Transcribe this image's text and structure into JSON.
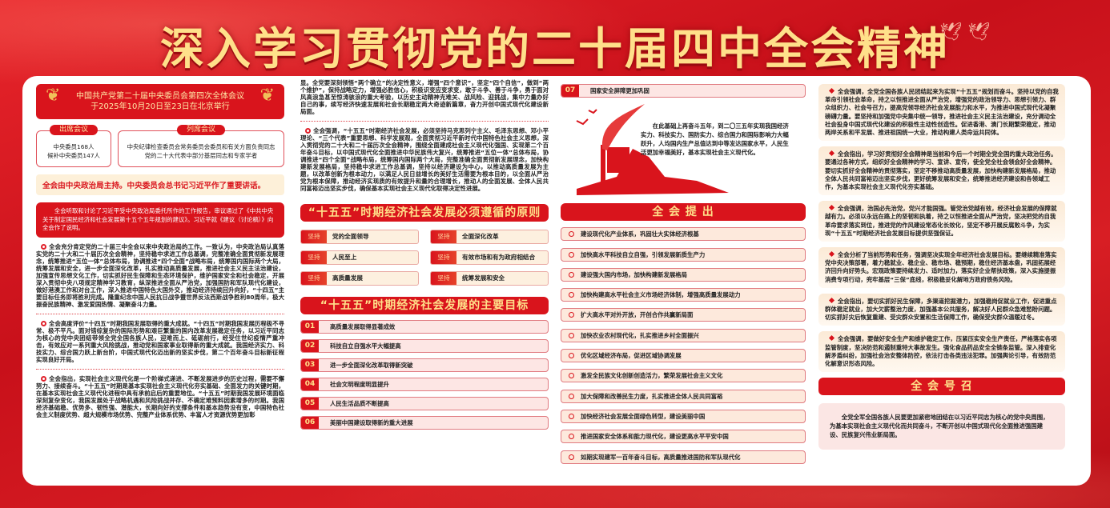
{
  "title": "深入学习贯彻党的二十届四中全会精神",
  "colors": {
    "primary_red": "#d9141c",
    "gold": "#ffe08a",
    "cream": "#fdf0d9"
  },
  "meeting": {
    "line1": "中国共产党第二十届中央委员会第四次全体会议",
    "line2": "于2025年10月20日至23日在北京举行"
  },
  "attend": {
    "label": "出席会议",
    "lines": [
      "中央委员168人",
      "候补中央委员147人"
    ]
  },
  "observe": {
    "label": "列席会议",
    "lines": [
      "中央纪律检查委员会常务委员会委员和有关方面负责同志",
      "党的二十大代表中部分基层同志和专家学者"
    ]
  },
  "host": "全会由中央政治局主持。中央委员会总书记习近平作了重要讲话。",
  "report": "全会听取和讨论了习近平受中央政治局委托所作的工作报告，审议通过了《中共中央关于制定国民经济和社会发展第十五个五年规划的建议》。习近平就《建议（讨论稿）》向全会作了说明。",
  "col1_paragraphs": [
    "全会充分肯定党的二十届三中全会以来中央政治局的工作。一致认为，中央政治局认真落实党的二十大和二十届历次全会精神，坚持稳中求进工作总基调，完整准确全面贯彻新发展理念，统筹推进“五位一体”总体布局，协调推进“四个全面”战略布局，统筹国内国际两个大局，统筹发展和安全，进一步全面深化改革，扎实推动高质量发展，推进社会主义民主法治建设，加强宣传思想文化工作，切实抓好民生保障和生态环境保护，维护国家安全和社会稳定，开展深入贯彻中央八项规定精神学习教育，纵深推进全面从严治党，加强国防和军队现代化建设，做好港澳工作和对台工作，深入推进中国特色大国外交，推动经济持续回升向好，“十四五”主要目标任务即将胜利完成。隆重纪念中国人民抗日战争暨世界反法西斯战争胜利80周年，极大振奋民族精神、激发爱国热情、凝聚奋斗力量。",
    "全会高度评价“十四五”时期我国发展取得的重大成就。“十四五”时期我国发展历程极不寻常、极不平凡。面对错综复杂的国际形势和艰巨繁重的国内改革发展稳定任务，以习近平同志为核心的党中央团结带领全党全国各族人民，迎难而上、砥砺前行，经受住世纪疫情严重冲击，有效应对一系列重大风险挑战，推动党和国家事业取得新的重大成就。我国经济实力、科技实力、综合国力跃上新台阶，中国式现代化迈出新的坚实步伐，第二个百年奋斗目标新征程实现良好开局。",
    "全会指出，实现社会主义现代化是一个阶梯式递进、不断发展进步的历史过程，需要不懈努力、接续奋斗。“十五五”时期是基本实现社会主义现代化夯实基础、全面发力的关键时期，在基本实现社会主义现代化进程中具有承前启后的重要地位。“十五五”时期我国发展环境面临深刻复杂变化，我国发展处于战略机遇和风险挑战并存、不确定难预料因素增多的时期。我国经济基础稳、优势多、韧性强、潜能大，长期向好的支撑条件和基本趋势没有变，中国特色社会主义制度优势、超大规模市场优势、完整产业体系优势、丰富人才资源优势更加彰"
  ],
  "col2_paragraphs": [
    "显。全党要深刻领悟“两个确立”的决定性意义，增强“四个意识”，坚定“四个自信”，做到“两个维护”，保持战略定力，增强必胜信心，积极识变应变求变，敢于斗争、善于斗争，勇于面对风高浪急甚至惊涛骇浪的重大考验，以历史主动精神克难关、战风险、迎挑战，集中力量办好自己的事，续写经济快速发展和社会长期稳定两大奇迹新篇章，奋力开创中国式现代化建设新局面。",
    "全会强调，“十五五”时期经济社会发展，必须坚持马克思列宁主义、毛泽东思想、邓小平理论、“三个代表”重要思想、科学发展观，全面贯彻习近平新时代中国特色社会主义思想，深入贯彻党的二十大和二十届历次全会精神，围绕全面建成社会主义现代化强国、实现第二个百年奋斗目标，以中国式现代化全面推进中华民族伟大复兴，统筹推进“五位一体”总体布局，协调推进“四个全面”战略布局，统筹国内国际两个大局，完整准确全面贯彻新发展理念，加快构建新发展格局，坚持稳中求进工作总基调，坚持以经济建设为中心，以推动高质量发展为主题，以改革创新为根本动力，以满足人民日益增长的美好生活需要为根本目的，以全面从严治党为根本保障，推动经济实现质的有效提升和量的合理增长，推动人的全面发展、全体人民共同富裕迈出坚实步伐，确保基本实现社会主义现代化取得决定性进展。"
  ],
  "principles": {
    "title": "“十五五”时期经济社会发展必须遵循的原则",
    "key": "坚持",
    "items": [
      "党的全面领导",
      "全面深化改革",
      "人民至上",
      "有效市场和有为政府相结合",
      "高质量发展",
      "统筹发展和安全"
    ]
  },
  "goals": {
    "title": "“十五五”时期经济社会发展的主要目标",
    "items": [
      {
        "num": "01",
        "text": "高质量发展取得显著成效"
      },
      {
        "num": "02",
        "text": "科技自立自强水平大幅提高"
      },
      {
        "num": "03",
        "text": "进一步全面深化改革取得新突破"
      },
      {
        "num": "04",
        "text": "社会文明程度明显提升"
      },
      {
        "num": "05",
        "text": "人民生活品质不断提高"
      },
      {
        "num": "06",
        "text": "美丽中国建设取得新的重大进展"
      },
      {
        "num": "07",
        "text": "国家安全屏障更加巩固"
      }
    ]
  },
  "vision": "在此基础上再奋斗五年，到二〇三五年实现我国经济实力、科技实力、国防实力、综合国力和国际影响力大幅跃升，人均国内生产总值达到中等发达国家水平，人民生活更加幸福美好，基本实现社会主义现代化。",
  "proposals": {
    "title": "全 会 提 出",
    "items": [
      "建设现代化产业体系，巩固壮大实体经济根基",
      "加快高水平科技自立自强，引领发展新质生产力",
      "建设强大国内市场，加快构建新发展格局",
      "加快构建高水平社会主义市场经济体制，增强高质量发展动力",
      "扩大高水平对外开放，开创合作共赢新局面",
      "加快农业农村现代化，扎实推进乡村全面振兴",
      "优化区域经济布局，促进区域协调发展",
      "激发全民族文化创新创造活力，繁荣发展社会主义文化",
      "加大保障和改善民生力度，扎实推进全体人民共同富裕",
      "加快经济社会发展全面绿色转型，建设美丽中国",
      "推进国家安全体系和能力现代化，建设更高水平平安中国",
      "如期实现建军一百年奋斗目标，高质量推进国防和军队现代化"
    ]
  },
  "col4_cards": [
    "全会强调，全党全国各族人民团结起来为实现“十五五”规划而奋斗。坚持以党的自我革命引领社会革命，持之以恒推进全面从严治党，增强党的政治领导力、思想引领力、群众组织力、社会号召力，提高党领导经济社会发展能力和水平，为推进中国式现代化凝聚磅礴力量。要坚持和加强党中央集中统一领导，推进社会主义民主法治建设，充分调动全社会投身中国式现代化建设的积极性主动性创造性。促进香港、澳门长期繁荣稳定，推动两岸关系和平发展、推进祖国统一大业，推动构建人类命运共同体。",
    "全会指出，学习好贯彻好全会精神是当前和今后一个时期全党全国的重大政治任务。要通过各种方式，组织好全会精神的学习、宣讲、宣传，使全党全社会领会好全会精神。要切实抓好全会精神的贯彻落实，坚定不移推动高质量发展，加快构建新发展格局，推动全体人民共同富裕迈出坚实步伐，更好统筹发展和安全，统筹推进经济建设和各领域工作，为基本实现社会主义现代化夯实基础。",
    "全会强调，治国必先治党，党兴才能国强。管党治党越有效，经济社会发展的保障就越有力。必须以永远在路上的坚韧和执着，持之以恒推进全面从严治党，坚决把党的自我革命要求落实到位，推进党的作风建设常态化长效化，坚定不移开展反腐败斗争，为实现“十五五”时期经济社会发展目标提供坚强保证。",
    "全会分析了当前形势和任务，强调坚决实现全年经济社会发展目标。要继续精准落实党中央决策部署，着力稳就业、稳企业、稳市场、稳预期，稳住经济基本盘，巩固拓展经济回升向好势头。宏观政策要持续发力、适时加力，落实好企业帮扶政策，深入实施提振消费专项行动，兜牢基层“三保”底线，积极稳妥化解地方政府债务风险。",
    "全会指出，要切实抓好民生保障，多渠道挖掘潜力，加强稳岗促就业工作，促进重点群体稳定就业，加大欠薪整治力度，加强基本公共服务，解决好人民群众急难愁盼问题。切实抓好灾后恢复重建、受灾群众安置和生活保障工作，确保受灾群众温暖过冬。",
    "全会强调，要做好安全生产和维护稳定工作，压紧压实安全生产责任，严格落实各项监管制度，坚决防范和遏制重特大事故发生。强化食品药品安全全链条监管。深入排查化解矛盾纠纷，加强社会治安整体防控，依法打击各类违法犯罪。加强舆论引导，有效防范化解意识形态风险。"
  ],
  "call": {
    "title": "全 会 号 召",
    "text": "全党全军全国各族人民要更加紧密地团结在以习近平同志为核心的党中央周围，为基本实现社会主义现代化而共同奋斗，不断开创以中国式现代化全面推进强国建设、民族复兴伟业新局面。"
  }
}
